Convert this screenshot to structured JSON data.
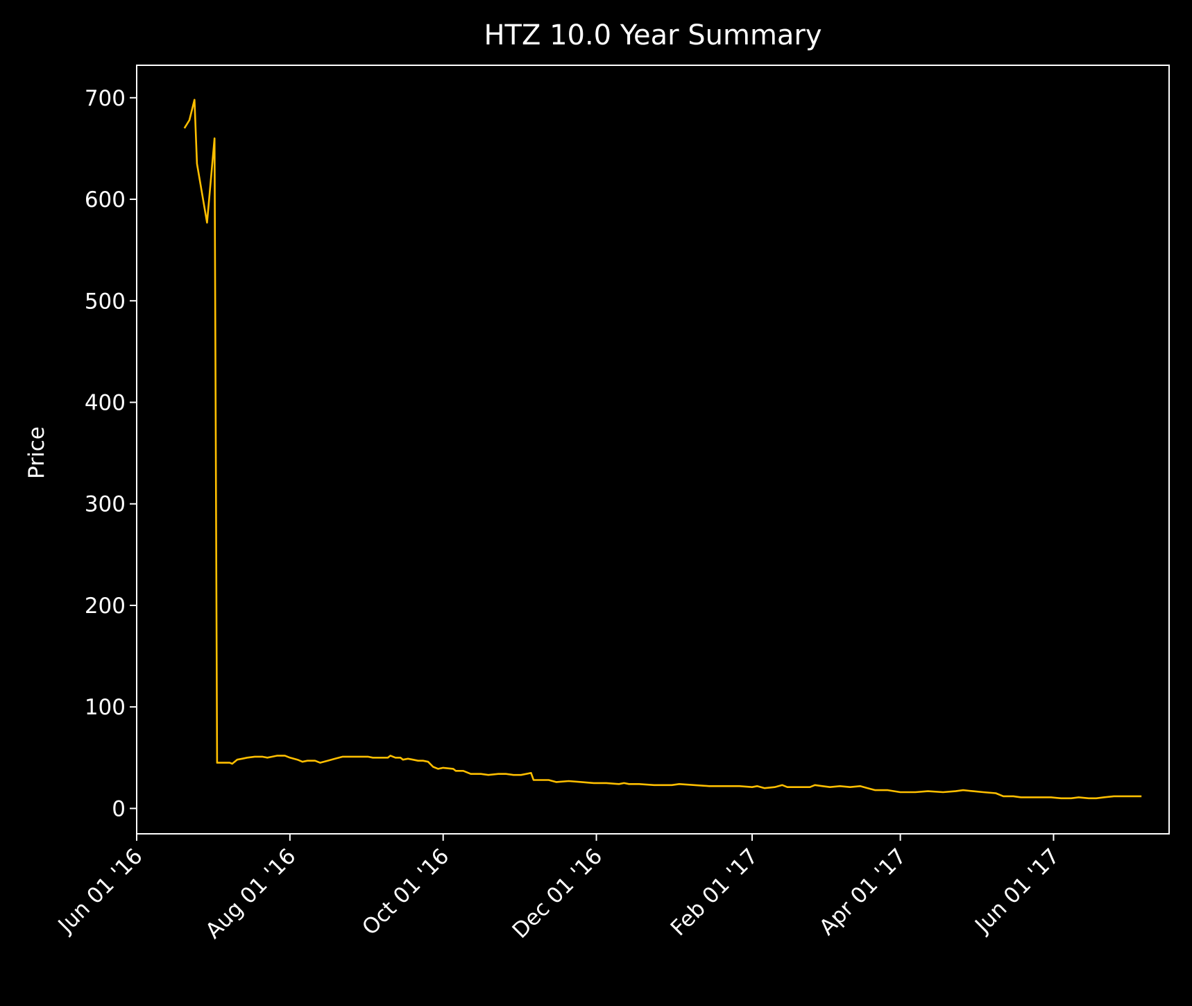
{
  "chart_data": {
    "type": "line",
    "title": "HTZ 10.0 Year Summary",
    "xlabel": "",
    "ylabel": "Price",
    "x_ticks": [
      {
        "date": "2016-06-01",
        "label": "Jun 01 '16"
      },
      {
        "date": "2016-08-01",
        "label": "Aug 01 '16"
      },
      {
        "date": "2016-10-01",
        "label": "Oct 01 '16"
      },
      {
        "date": "2016-12-01",
        "label": "Dec 01 '16"
      },
      {
        "date": "2017-02-01",
        "label": "Feb 01 '17"
      },
      {
        "date": "2017-04-01",
        "label": "Apr 01 '17"
      },
      {
        "date": "2017-06-01",
        "label": "Jun 01 '17"
      }
    ],
    "y_ticks": [
      0,
      100,
      200,
      300,
      400,
      500,
      600,
      700
    ],
    "xlim": [
      "2016-06-01",
      "2017-07-17"
    ],
    "ylim": [
      -25,
      732
    ],
    "grid": false,
    "colors": {
      "background": "#000000",
      "axes": "#ffffff",
      "line": "#ffbf00"
    },
    "series": [
      {
        "points": [
          [
            "2016-06-20",
            670
          ],
          [
            "2016-06-22",
            678
          ],
          [
            "2016-06-24",
            698
          ],
          [
            "2016-06-25",
            635
          ],
          [
            "2016-06-29",
            577
          ],
          [
            "2016-07-02",
            660
          ],
          [
            "2016-07-03",
            45
          ],
          [
            "2016-07-06",
            45
          ],
          [
            "2016-07-08",
            45
          ],
          [
            "2016-07-09",
            44
          ],
          [
            "2016-07-11",
            48
          ],
          [
            "2016-07-13",
            49
          ],
          [
            "2016-07-15",
            50
          ],
          [
            "2016-07-18",
            51
          ],
          [
            "2016-07-21",
            51
          ],
          [
            "2016-07-23",
            50
          ],
          [
            "2016-07-25",
            51
          ],
          [
            "2016-07-27",
            52
          ],
          [
            "2016-07-30",
            52
          ],
          [
            "2016-08-01",
            50
          ],
          [
            "2016-08-04",
            48
          ],
          [
            "2016-08-06",
            46
          ],
          [
            "2016-08-08",
            47
          ],
          [
            "2016-08-11",
            47
          ],
          [
            "2016-08-13",
            45
          ],
          [
            "2016-08-16",
            47
          ],
          [
            "2016-08-19",
            49
          ],
          [
            "2016-08-22",
            51
          ],
          [
            "2016-08-25",
            51
          ],
          [
            "2016-08-28",
            51
          ],
          [
            "2016-09-01",
            51
          ],
          [
            "2016-09-03",
            50
          ],
          [
            "2016-09-06",
            50
          ],
          [
            "2016-09-09",
            50
          ],
          [
            "2016-09-10",
            52
          ],
          [
            "2016-09-12",
            50
          ],
          [
            "2016-09-14",
            50
          ],
          [
            "2016-09-15",
            48
          ],
          [
            "2016-09-17",
            49
          ],
          [
            "2016-09-19",
            48
          ],
          [
            "2016-09-21",
            47
          ],
          [
            "2016-09-23",
            47
          ],
          [
            "2016-09-25",
            46
          ],
          [
            "2016-09-27",
            41
          ],
          [
            "2016-09-29",
            39
          ],
          [
            "2016-10-01",
            40
          ],
          [
            "2016-10-05",
            39
          ],
          [
            "2016-10-06",
            37
          ],
          [
            "2016-10-09",
            37
          ],
          [
            "2016-10-12",
            34
          ],
          [
            "2016-10-16",
            34
          ],
          [
            "2016-10-19",
            33
          ],
          [
            "2016-10-23",
            34
          ],
          [
            "2016-10-26",
            34
          ],
          [
            "2016-10-29",
            33
          ],
          [
            "2016-11-01",
            33
          ],
          [
            "2016-11-05",
            35
          ],
          [
            "2016-11-06",
            28
          ],
          [
            "2016-11-09",
            28
          ],
          [
            "2016-11-12",
            28
          ],
          [
            "2016-11-15",
            26
          ],
          [
            "2016-11-20",
            27
          ],
          [
            "2016-11-25",
            26
          ],
          [
            "2016-11-30",
            25
          ],
          [
            "2016-12-05",
            25
          ],
          [
            "2016-12-10",
            24
          ],
          [
            "2016-12-12",
            25
          ],
          [
            "2016-12-14",
            24
          ],
          [
            "2016-12-18",
            24
          ],
          [
            "2016-12-24",
            23
          ],
          [
            "2016-12-31",
            23
          ],
          [
            "2017-01-03",
            24
          ],
          [
            "2017-01-09",
            23
          ],
          [
            "2017-01-15",
            22
          ],
          [
            "2017-01-21",
            22
          ],
          [
            "2017-01-27",
            22
          ],
          [
            "2017-02-01",
            21
          ],
          [
            "2017-02-03",
            22
          ],
          [
            "2017-02-06",
            20
          ],
          [
            "2017-02-10",
            21
          ],
          [
            "2017-02-13",
            23
          ],
          [
            "2017-02-15",
            21
          ],
          [
            "2017-02-20",
            21
          ],
          [
            "2017-02-24",
            21
          ],
          [
            "2017-02-26",
            23
          ],
          [
            "2017-03-01",
            22
          ],
          [
            "2017-03-04",
            21
          ],
          [
            "2017-03-08",
            22
          ],
          [
            "2017-03-12",
            21
          ],
          [
            "2017-03-16",
            22
          ],
          [
            "2017-03-19",
            20
          ],
          [
            "2017-03-22",
            18
          ],
          [
            "2017-03-27",
            18
          ],
          [
            "2017-04-01",
            16
          ],
          [
            "2017-04-07",
            16
          ],
          [
            "2017-04-12",
            17
          ],
          [
            "2017-04-18",
            16
          ],
          [
            "2017-04-23",
            17
          ],
          [
            "2017-04-26",
            18
          ],
          [
            "2017-04-30",
            17
          ],
          [
            "2017-05-04",
            16
          ],
          [
            "2017-05-09",
            15
          ],
          [
            "2017-05-12",
            12
          ],
          [
            "2017-05-16",
            12
          ],
          [
            "2017-05-19",
            11
          ],
          [
            "2017-05-22",
            11
          ],
          [
            "2017-05-27",
            11
          ],
          [
            "2017-05-31",
            11
          ],
          [
            "2017-06-04",
            10
          ],
          [
            "2017-06-08",
            10
          ],
          [
            "2017-06-11",
            11
          ],
          [
            "2017-06-15",
            10
          ],
          [
            "2017-06-18",
            10
          ],
          [
            "2017-06-21",
            11
          ],
          [
            "2017-06-25",
            12
          ],
          [
            "2017-06-29",
            12
          ],
          [
            "2017-07-03",
            12
          ],
          [
            "2017-07-06",
            12
          ]
        ]
      }
    ]
  }
}
